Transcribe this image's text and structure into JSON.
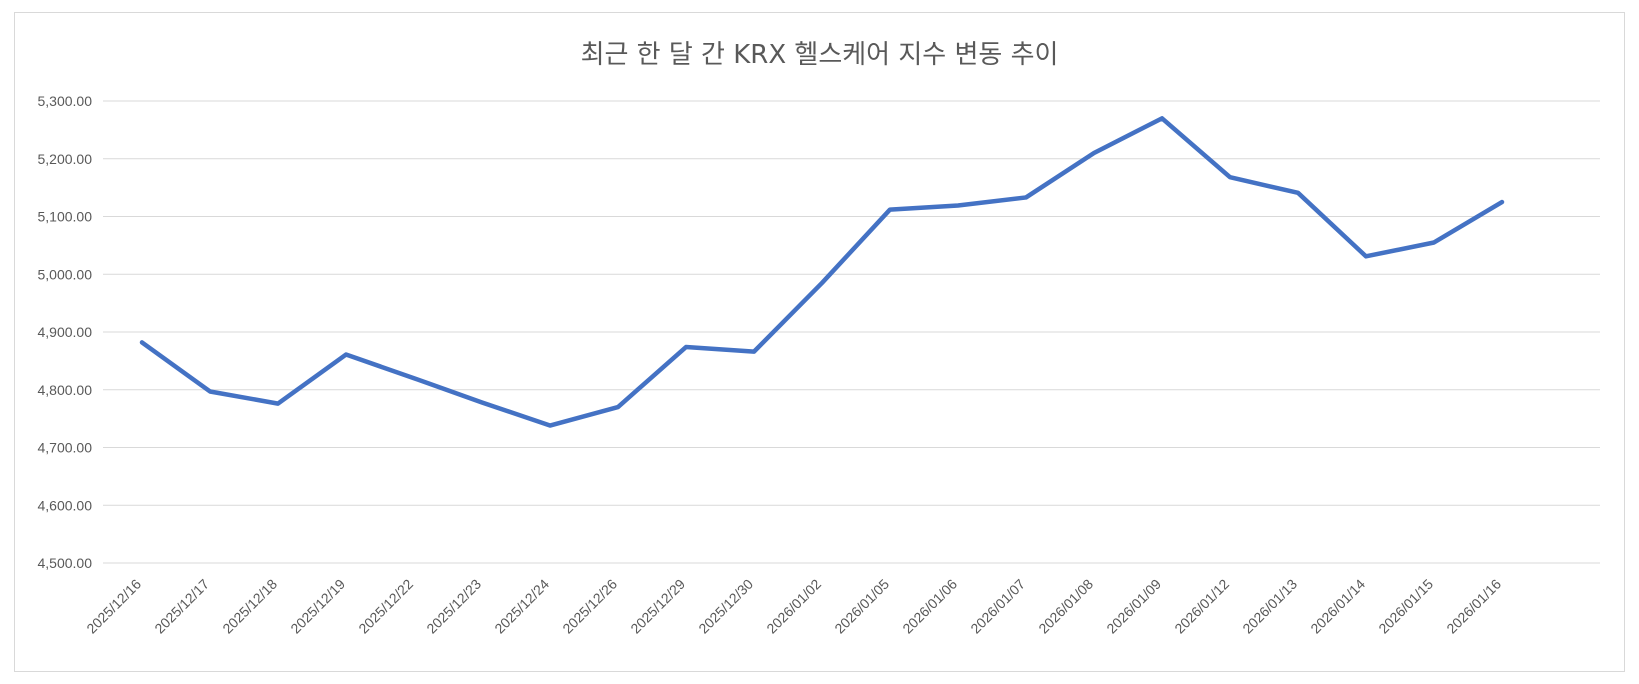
{
  "chart_data": {
    "type": "line",
    "title": "최근 한 달 간 KRX 헬스케어 지수 변동 추이",
    "xlabel": "",
    "ylabel": "",
    "ylim": [
      4500,
      5300
    ],
    "yticks": [
      "4,500.00",
      "4,600.00",
      "4,700.00",
      "4,800.00",
      "4,900.00",
      "5,000.00",
      "5,100.00",
      "5,200.00",
      "5,300.00"
    ],
    "grid": true,
    "legend": "none",
    "categories": [
      "2025/12/16",
      "2025/12/17",
      "2025/12/18",
      "2025/12/19",
      "2025/12/22",
      "2025/12/23",
      "2025/12/24",
      "2025/12/26",
      "2025/12/29",
      "2025/12/30",
      "2026/01/02",
      "2026/01/05",
      "2026/01/06",
      "2026/01/07",
      "2026/01/08",
      "2026/01/09",
      "2026/01/12",
      "2026/01/13",
      "2026/01/14",
      "2026/01/15",
      "2026/01/16"
    ],
    "series": [
      {
        "color": "#4472c4",
        "values": [
          4882,
          4797,
          4776,
          4861,
          4820,
          4778,
          4738,
          4770,
          4874,
          4866,
          4985,
          5112,
          5119,
          5133,
          5210,
          5270,
          5168,
          5141,
          5031,
          5055,
          5125
        ]
      }
    ]
  }
}
